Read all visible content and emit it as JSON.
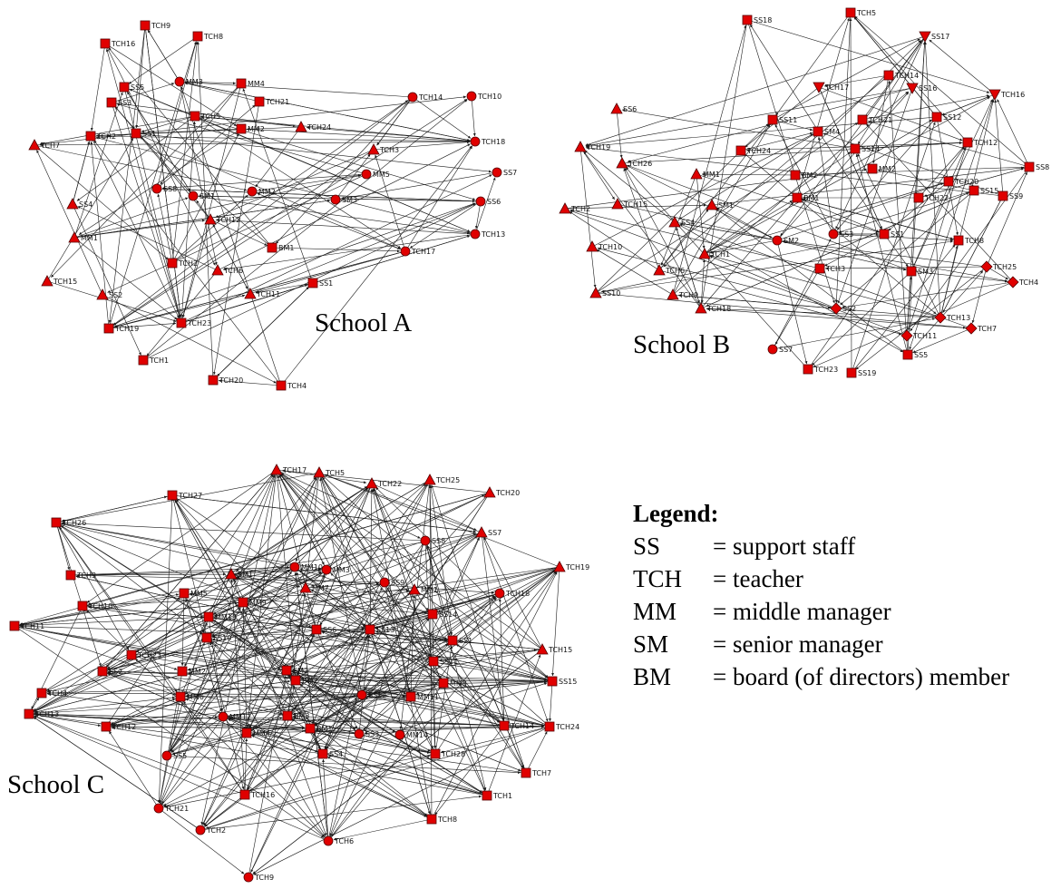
{
  "panels": [
    {
      "title": "School A",
      "nodes": [
        {
          "id": "TCH9",
          "shape": "square"
        },
        {
          "id": "TCH8",
          "shape": "square"
        },
        {
          "id": "TCH16",
          "shape": "square"
        },
        {
          "id": "MM3",
          "shape": "circle"
        },
        {
          "id": "MM4",
          "shape": "square"
        },
        {
          "id": "SS5",
          "shape": "square"
        },
        {
          "id": "SS3",
          "shape": "square"
        },
        {
          "id": "TCH21",
          "shape": "square"
        },
        {
          "id": "TCH5",
          "shape": "square"
        },
        {
          "id": "TCH2",
          "shape": "square"
        },
        {
          "id": "SS1",
          "shape": "square"
        },
        {
          "id": "MM2",
          "shape": "square"
        },
        {
          "id": "TCH24",
          "shape": "triangle"
        },
        {
          "id": "TCH7",
          "shape": "triangle"
        },
        {
          "id": "TCH3",
          "shape": "triangle"
        },
        {
          "id": "TCH14",
          "shape": "circle"
        },
        {
          "id": "TCH10",
          "shape": "circle"
        },
        {
          "id": "TCH18",
          "shape": "circle"
        },
        {
          "id": "MM5",
          "shape": "circle"
        },
        {
          "id": "SS7",
          "shape": "circle"
        },
        {
          "id": "SS8",
          "shape": "circle"
        },
        {
          "id": "SM1",
          "shape": "circle"
        },
        {
          "id": "MM2b",
          "label": "MM2",
          "shape": "circle"
        },
        {
          "id": "SS6",
          "shape": "circle"
        },
        {
          "id": "SM3",
          "shape": "circle"
        },
        {
          "id": "SS4",
          "shape": "triangle"
        },
        {
          "id": "TCH12",
          "shape": "triangle"
        },
        {
          "id": "MM1",
          "shape": "triangle"
        },
        {
          "id": "TCH13",
          "shape": "circle"
        },
        {
          "id": "BM1",
          "shape": "square"
        },
        {
          "id": "TCH17",
          "shape": "circle"
        },
        {
          "id": "TCH2b",
          "label": "TCH2",
          "shape": "square"
        },
        {
          "id": "TCH6",
          "shape": "triangle"
        },
        {
          "id": "SS1b",
          "label": "SS1",
          "shape": "square"
        },
        {
          "id": "TCH15",
          "shape": "triangle"
        },
        {
          "id": "SS2",
          "shape": "triangle"
        },
        {
          "id": "TCH11",
          "shape": "triangle"
        },
        {
          "id": "TCH19",
          "shape": "square"
        },
        {
          "id": "TCH23",
          "shape": "square"
        },
        {
          "id": "TCH1",
          "shape": "square"
        },
        {
          "id": "TCH20",
          "shape": "square"
        },
        {
          "id": "TCH4",
          "shape": "square"
        }
      ]
    },
    {
      "title": "School B",
      "nodes": [
        {
          "id": "SS18",
          "shape": "square"
        },
        {
          "id": "TCH5",
          "shape": "square"
        },
        {
          "id": "SS17",
          "shape": "triangle-down"
        },
        {
          "id": "TCH14",
          "shape": "square"
        },
        {
          "id": "TCH17",
          "shape": "triangle-down"
        },
        {
          "id": "SS16",
          "shape": "triangle-down"
        },
        {
          "id": "TCH16",
          "shape": "triangle-down"
        },
        {
          "id": "SS6",
          "shape": "triangle"
        },
        {
          "id": "SS11",
          "shape": "square"
        },
        {
          "id": "TCH21",
          "shape": "square"
        },
        {
          "id": "SS12",
          "shape": "square"
        },
        {
          "id": "SM4",
          "shape": "square"
        },
        {
          "id": "TCH19",
          "shape": "triangle"
        },
        {
          "id": "TCH24",
          "shape": "square"
        },
        {
          "id": "SS14",
          "shape": "square"
        },
        {
          "id": "TCH12",
          "shape": "square"
        },
        {
          "id": "TCH26",
          "shape": "triangle"
        },
        {
          "id": "MM1",
          "shape": "triangle"
        },
        {
          "id": "BM2",
          "shape": "square"
        },
        {
          "id": "MM2",
          "shape": "square"
        },
        {
          "id": "SS8",
          "shape": "square"
        },
        {
          "id": "TCH20",
          "shape": "square"
        },
        {
          "id": "BM1",
          "shape": "square"
        },
        {
          "id": "TCH22",
          "shape": "square"
        },
        {
          "id": "SS15",
          "shape": "square"
        },
        {
          "id": "SS9",
          "shape": "square"
        },
        {
          "id": "TCH2",
          "shape": "triangle"
        },
        {
          "id": "TCH15",
          "shape": "triangle"
        },
        {
          "id": "SM1",
          "shape": "triangle"
        },
        {
          "id": "SS3",
          "shape": "circle"
        },
        {
          "id": "SS4",
          "shape": "triangle"
        },
        {
          "id": "SM2",
          "shape": "circle"
        },
        {
          "id": "SS1",
          "shape": "square"
        },
        {
          "id": "TCH8",
          "shape": "square"
        },
        {
          "id": "TCH10",
          "shape": "triangle"
        },
        {
          "id": "TCH1",
          "shape": "triangle"
        },
        {
          "id": "TCH25",
          "shape": "diamond"
        },
        {
          "id": "TCH6",
          "shape": "triangle"
        },
        {
          "id": "TCH3",
          "shape": "square"
        },
        {
          "id": "SM3",
          "shape": "square"
        },
        {
          "id": "TCH4",
          "shape": "diamond"
        },
        {
          "id": "TCH9",
          "shape": "triangle"
        },
        {
          "id": "TCH18",
          "shape": "triangle"
        },
        {
          "id": "SS2",
          "shape": "diamond"
        },
        {
          "id": "SS10",
          "shape": "triangle"
        },
        {
          "id": "TCH13",
          "shape": "diamond"
        },
        {
          "id": "TCH7",
          "shape": "diamond"
        },
        {
          "id": "TCH11",
          "shape": "diamond"
        },
        {
          "id": "SS7",
          "shape": "circle"
        },
        {
          "id": "SS5",
          "shape": "square"
        },
        {
          "id": "TCH23",
          "shape": "square"
        },
        {
          "id": "SS19",
          "shape": "square"
        }
      ]
    },
    {
      "title": "School C",
      "nodes": [
        {
          "id": "TCH17",
          "shape": "triangle"
        },
        {
          "id": "TCH5",
          "shape": "triangle"
        },
        {
          "id": "TCH22",
          "shape": "triangle"
        },
        {
          "id": "TCH25",
          "shape": "triangle"
        },
        {
          "id": "TCH20",
          "shape": "triangle"
        },
        {
          "id": "TCH27",
          "shape": "square"
        },
        {
          "id": "SS7",
          "shape": "triangle"
        },
        {
          "id": "TCH26",
          "shape": "square"
        },
        {
          "id": "SS8",
          "shape": "circle"
        },
        {
          "id": "TCH19",
          "shape": "triangle"
        },
        {
          "id": "TCH3",
          "shape": "square"
        },
        {
          "id": "SM1",
          "shape": "triangle"
        },
        {
          "id": "MM10",
          "shape": "circle"
        },
        {
          "id": "MM3",
          "shape": "circle"
        },
        {
          "id": "MM7",
          "shape": "triangle"
        },
        {
          "id": "SS9",
          "shape": "circle"
        },
        {
          "id": "MM1",
          "shape": "triangle"
        },
        {
          "id": "TCH18",
          "shape": "circle"
        },
        {
          "id": "TCH10",
          "shape": "square"
        },
        {
          "id": "MM5",
          "shape": "square"
        },
        {
          "id": "MM9",
          "shape": "square"
        },
        {
          "id": "SS14",
          "shape": "square"
        },
        {
          "id": "TCH11",
          "shape": "square"
        },
        {
          "id": "MM13",
          "shape": "square"
        },
        {
          "id": "SS6",
          "shape": "square"
        },
        {
          "id": "SS13",
          "shape": "square"
        },
        {
          "id": "SS10",
          "shape": "square"
        },
        {
          "id": "SS1",
          "shape": "square"
        },
        {
          "id": "TCH15",
          "shape": "triangle"
        },
        {
          "id": "TCH23",
          "shape": "square"
        },
        {
          "id": "SS11",
          "shape": "square"
        },
        {
          "id": "SS2",
          "shape": "square"
        },
        {
          "id": "MM2",
          "shape": "square"
        },
        {
          "id": "SM2",
          "shape": "square"
        },
        {
          "id": "BM2",
          "shape": "square"
        },
        {
          "id": "MM8",
          "shape": "square"
        },
        {
          "id": "SS15",
          "shape": "square"
        },
        {
          "id": "TCH4",
          "shape": "square"
        },
        {
          "id": "MM6",
          "shape": "square"
        },
        {
          "id": "SS12",
          "shape": "circle"
        },
        {
          "id": "MM11",
          "shape": "square"
        },
        {
          "id": "TCH13",
          "shape": "square"
        },
        {
          "id": "MM12",
          "shape": "circle"
        },
        {
          "id": "BM3",
          "shape": "square"
        },
        {
          "id": "TCH12",
          "shape": "square"
        },
        {
          "id": "MM4",
          "shape": "square"
        },
        {
          "id": "BM1",
          "shape": "square"
        },
        {
          "id": "SS3",
          "shape": "circle"
        },
        {
          "id": "MM14",
          "shape": "circle"
        },
        {
          "id": "TCH14",
          "shape": "square"
        },
        {
          "id": "TCH24",
          "shape": "square"
        },
        {
          "id": "SS5",
          "shape": "circle"
        },
        {
          "id": "SS4",
          "shape": "square"
        },
        {
          "id": "TCH28",
          "shape": "square"
        },
        {
          "id": "TCH7",
          "shape": "square"
        },
        {
          "id": "TCH16",
          "shape": "square"
        },
        {
          "id": "TCH1",
          "shape": "square"
        },
        {
          "id": "TCH21",
          "shape": "circle"
        },
        {
          "id": "TCH8",
          "shape": "square"
        },
        {
          "id": "TCH2",
          "shape": "circle"
        },
        {
          "id": "TCH6",
          "shape": "circle"
        },
        {
          "id": "TCH9",
          "shape": "circle"
        }
      ]
    }
  ],
  "legend": {
    "title": "Legend:",
    "items": [
      {
        "abbr": "SS",
        "meaning": "= support staff"
      },
      {
        "abbr": "TCH",
        "meaning": "= teacher"
      },
      {
        "abbr": "MM",
        "meaning": "= middle manager"
      },
      {
        "abbr": "SM",
        "meaning": "= senior manager"
      },
      {
        "abbr": "BM",
        "meaning": "= board (of directors) member"
      }
    ]
  },
  "colors": {
    "node_fill": "#e00000",
    "node_stroke": "#550000",
    "edge": "#1a1a1a",
    "background": "#ffffff"
  }
}
